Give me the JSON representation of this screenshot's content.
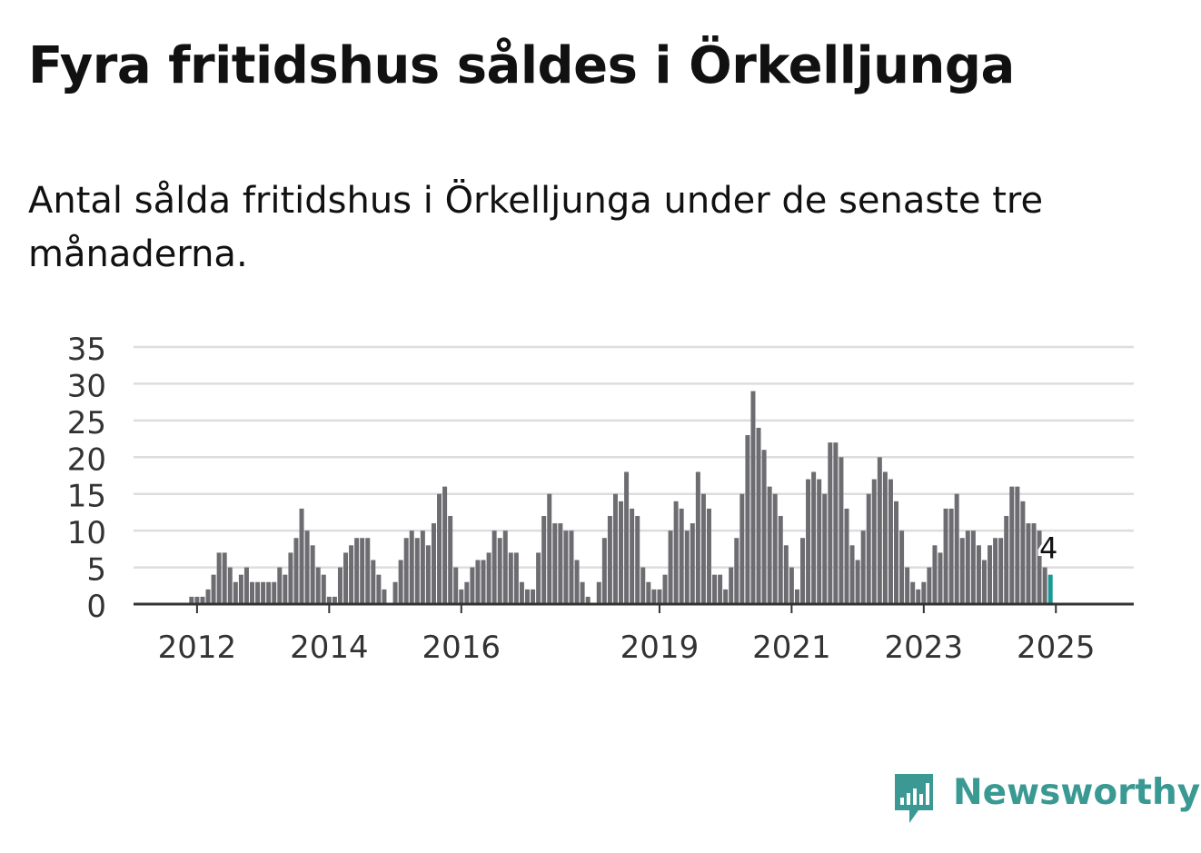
{
  "title": "Fyra fritidshus såldes i Örkelljunga",
  "subtitle": "Antal sålda fritidshus i Örkelljunga under de senaste tre månaderna.",
  "logo": {
    "text": "Newsworthy",
    "icon": "newsworthy-chart-icon",
    "color": "#3a9a93"
  },
  "colors": {
    "bar": "#6d6c71",
    "highlight": "#1a9a95",
    "grid": "#dddddd",
    "axis": "#333333"
  },
  "chart_data": {
    "type": "bar",
    "start_month": "2011-03",
    "x_ticks": [
      "2012",
      "2014",
      "2016",
      "2019",
      "2021",
      "2023",
      "2025"
    ],
    "x_tick_months": [
      "2012-01",
      "2014-01",
      "2016-01",
      "2019-01",
      "2021-01",
      "2023-01",
      "2025-01"
    ],
    "y_ticks": [
      0,
      5,
      10,
      15,
      20,
      25,
      30,
      35
    ],
    "ylim": [
      0,
      35
    ],
    "grid": true,
    "values": [
      0,
      0,
      0,
      0,
      0,
      0,
      0,
      0,
      0,
      1,
      1,
      1,
      2,
      4,
      7,
      7,
      5,
      3,
      4,
      5,
      3,
      3,
      3,
      3,
      3,
      5,
      4,
      7,
      9,
      13,
      10,
      8,
      5,
      4,
      1,
      1,
      5,
      7,
      8,
      9,
      9,
      9,
      6,
      4,
      2,
      0,
      3,
      6,
      9,
      10,
      9,
      10,
      8,
      11,
      15,
      16,
      12,
      5,
      2,
      3,
      5,
      6,
      6,
      7,
      10,
      9,
      10,
      7,
      7,
      3,
      2,
      2,
      7,
      12,
      15,
      11,
      11,
      10,
      10,
      6,
      3,
      1,
      0,
      3,
      9,
      12,
      15,
      14,
      18,
      13,
      12,
      5,
      3,
      2,
      2,
      4,
      10,
      14,
      13,
      10,
      11,
      18,
      15,
      13,
      4,
      4,
      2,
      5,
      9,
      15,
      23,
      29,
      24,
      21,
      16,
      15,
      12,
      8,
      5,
      2,
      9,
      17,
      18,
      17,
      15,
      22,
      22,
      20,
      13,
      8,
      6,
      10,
      15,
      17,
      20,
      18,
      17,
      14,
      10,
      5,
      3,
      2,
      3,
      5,
      8,
      7,
      13,
      13,
      15,
      9,
      10,
      10,
      8,
      6,
      8,
      9,
      9,
      12,
      16,
      16,
      14,
      11,
      11,
      10,
      5,
      4
    ],
    "highlight_last": true,
    "annotation": "4"
  }
}
